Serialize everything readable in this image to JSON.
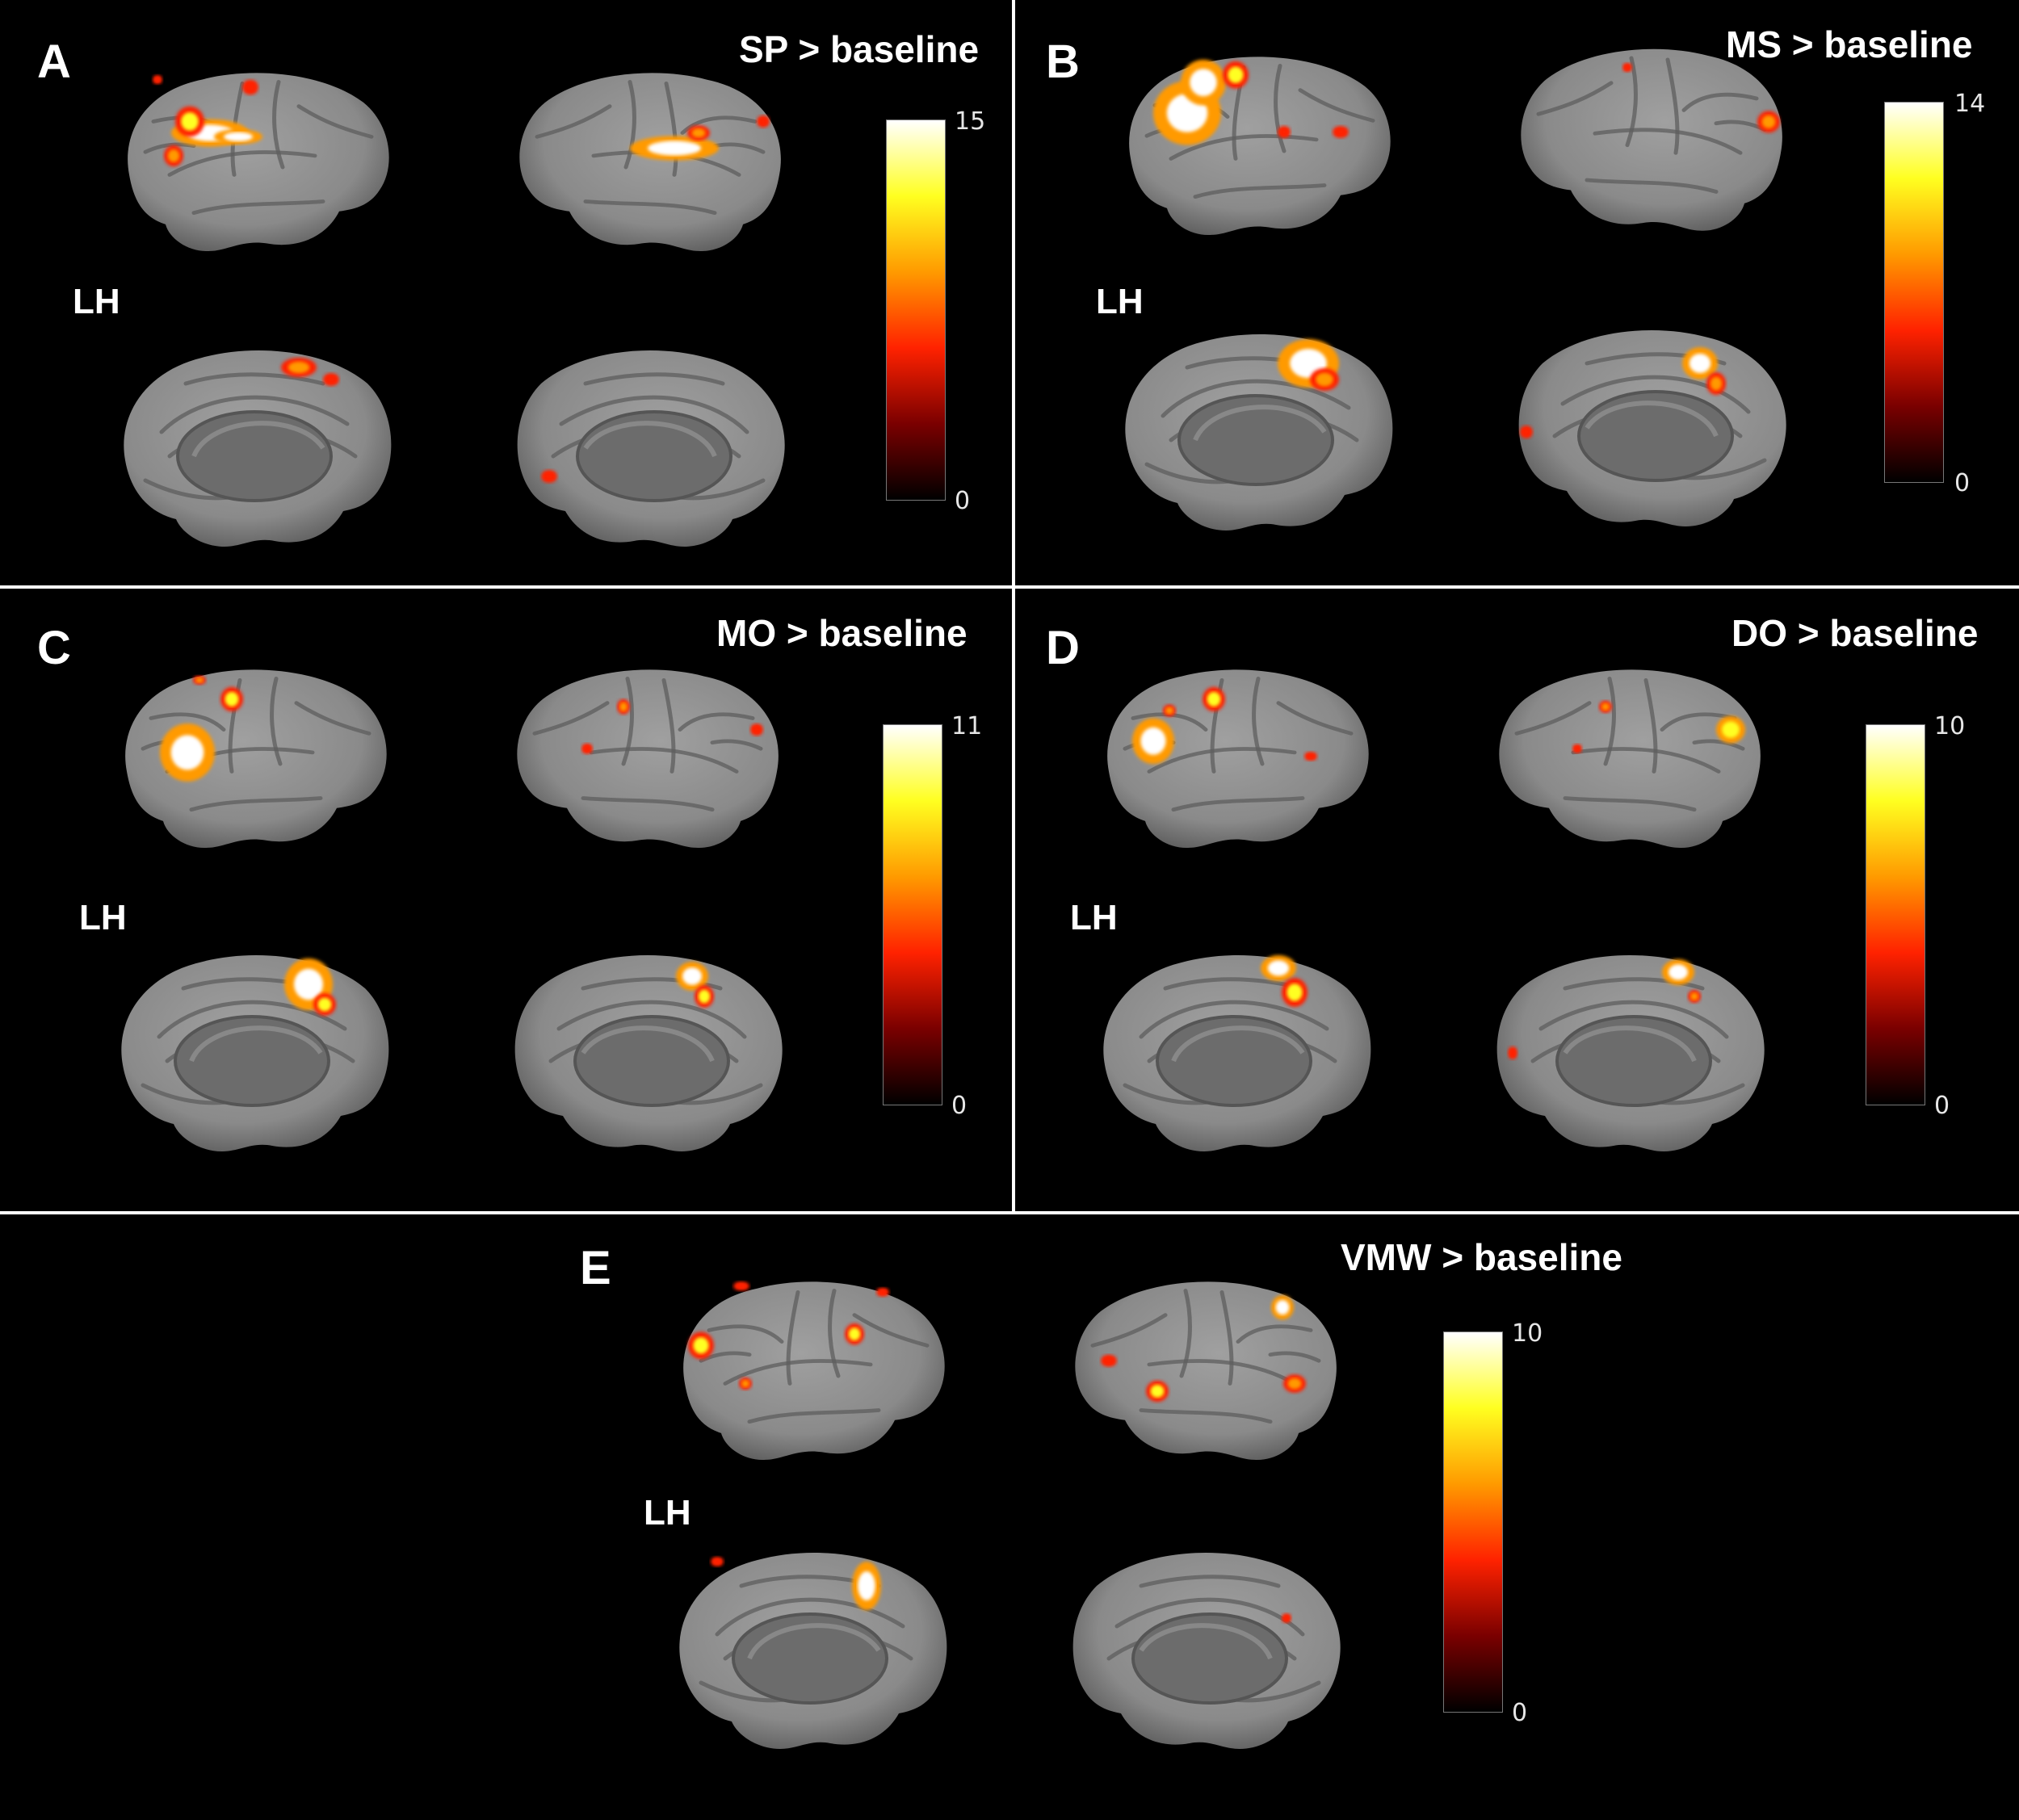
{
  "colors": {
    "background": "#000000",
    "divider": "#ffffff",
    "brain_cortex": "#8a8a8a",
    "brain_shadow": "#5a5a5a",
    "medial_wall": "#6c6c6c",
    "colormap": [
      "#000000",
      "#7a0000",
      "#ff2200",
      "#ff9a00",
      "#ffff20",
      "#ffffff"
    ]
  },
  "panels": [
    {
      "letter": "A",
      "title": "SP > baseline",
      "hemisphere_label": "LH",
      "scale_max": "15",
      "scale_min": "0"
    },
    {
      "letter": "B",
      "title": "MS > baseline",
      "hemisphere_label": "LH",
      "scale_max": "14",
      "scale_min": "0"
    },
    {
      "letter": "C",
      "title": "MO > baseline",
      "hemisphere_label": "LH",
      "scale_max": "11",
      "scale_min": "0"
    },
    {
      "letter": "D",
      "title": "DO > baseline",
      "hemisphere_label": "LH",
      "scale_max": "10",
      "scale_min": "0"
    },
    {
      "letter": "E",
      "title": "VMW > baseline",
      "hemisphere_label": "LH",
      "scale_max": "10",
      "scale_min": "0"
    }
  ]
}
